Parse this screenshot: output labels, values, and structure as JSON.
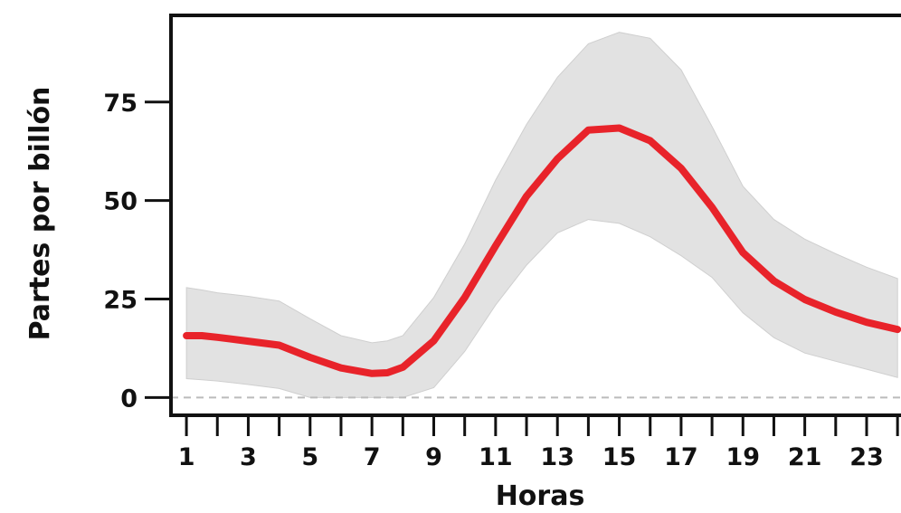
{
  "chart_data": {
    "type": "line",
    "title": "",
    "xlabel": "Horas",
    "ylabel": "Partes por billón",
    "xlim": [
      0.5,
      24.2
    ],
    "ylim": [
      -4.5,
      97
    ],
    "x_ticks": [
      1,
      3,
      5,
      7,
      9,
      11,
      13,
      15,
      17,
      19,
      21,
      23
    ],
    "y_ticks": [
      0,
      25,
      50,
      75
    ],
    "reference_line": {
      "y": 0,
      "style": "dashed"
    },
    "grid": false,
    "legend": "none",
    "colors": {
      "line": "#e8232a",
      "band": "#e2e2e2",
      "axis": "#111111",
      "reference": "#bbbbbb"
    },
    "x": [
      1,
      1.5,
      2,
      3,
      4,
      5,
      6,
      7,
      7.5,
      8,
      9,
      10,
      11,
      12,
      13,
      14,
      15,
      16,
      17,
      18,
      19,
      20,
      21,
      22,
      23,
      24
    ],
    "series": [
      {
        "values": [
          15.7,
          15.7,
          15.3,
          14.3,
          13.3,
          10.2,
          7.5,
          6.1,
          6.3,
          7.7,
          14.4,
          25.4,
          38.5,
          51.1,
          60.6,
          67.9,
          68.4,
          65.2,
          58.2,
          48.3,
          36.8,
          29.6,
          24.9,
          21.7,
          19.1,
          17.3
        ]
      },
      {
        "name": "upper",
        "values": [
          27.9,
          27.3,
          26.6,
          25.7,
          24.5,
          20.0,
          15.7,
          13.9,
          14.4,
          15.7,
          25.4,
          39.0,
          55.2,
          69.3,
          81.3,
          89.8,
          92.7,
          91.2,
          83.2,
          68.8,
          53.6,
          45.2,
          40.2,
          36.5,
          33.1,
          30.2
        ]
      },
      {
        "name": "lower",
        "values": [
          4.8,
          4.5,
          4.2,
          3.3,
          2.3,
          0.0,
          0.0,
          0.0,
          0.0,
          0.0,
          2.5,
          11.7,
          23.5,
          33.6,
          41.8,
          45.2,
          44.2,
          40.8,
          36.0,
          30.5,
          21.5,
          15.2,
          11.3,
          9.2,
          7.2,
          5.1
        ]
      }
    ]
  }
}
